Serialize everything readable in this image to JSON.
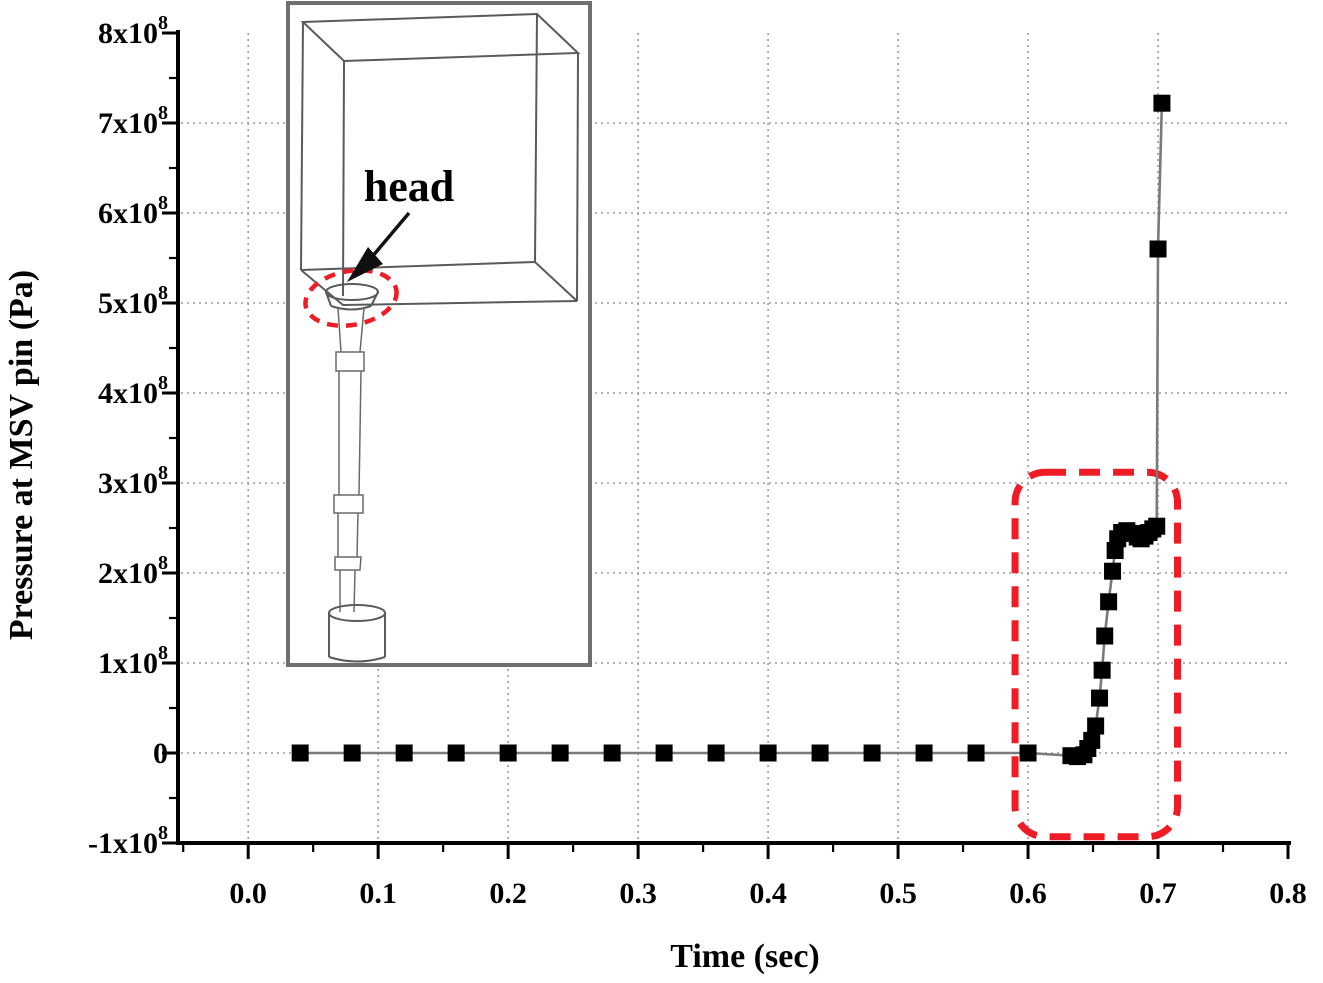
{
  "figure": {
    "background": "#ffffff",
    "accent_red": "#ee1c25",
    "axis_color": "#000000",
    "grid_color": "#9b9b9b",
    "line_color": "#7a7a7a",
    "marker_color": "#000000",
    "inset_frame_color": "#707070"
  },
  "chart_data": {
    "type": "scatter",
    "title": "",
    "xlabel": "Time (sec)",
    "ylabel": "Pressure at MSV pin (Pa)",
    "xlim": [
      -0.054,
      0.8
    ],
    "ylim": [
      -100000000,
      800000000
    ],
    "grid": true,
    "grid_style": "dotted",
    "x_minor_step": 0.05,
    "y_minor_step": 50000000,
    "x_ticks": [
      {
        "value": 0.0,
        "label": "0.0"
      },
      {
        "value": 0.1,
        "label": "0.1"
      },
      {
        "value": 0.2,
        "label": "0.2"
      },
      {
        "value": 0.3,
        "label": "0.3"
      },
      {
        "value": 0.4,
        "label": "0.4"
      },
      {
        "value": 0.5,
        "label": "0.5"
      },
      {
        "value": 0.6,
        "label": "0.6"
      },
      {
        "value": 0.7,
        "label": "0.7"
      },
      {
        "value": 0.8,
        "label": "0.8"
      }
    ],
    "y_ticks": [
      {
        "value": 800000000,
        "label": "8x10",
        "sup": "8"
      },
      {
        "value": 700000000,
        "label": "7x10",
        "sup": "8"
      },
      {
        "value": 600000000,
        "label": "6x10",
        "sup": "8"
      },
      {
        "value": 500000000,
        "label": "5x10",
        "sup": "8"
      },
      {
        "value": 400000000,
        "label": "4x10",
        "sup": "8"
      },
      {
        "value": 300000000,
        "label": "3x10",
        "sup": "8"
      },
      {
        "value": 200000000,
        "label": "2x10",
        "sup": "8"
      },
      {
        "value": 100000000,
        "label": "1x10",
        "sup": "8"
      },
      {
        "value": 0,
        "label": "0",
        "sup": ""
      },
      {
        "value": -100000000,
        "label": "-1x10",
        "sup": "8"
      }
    ],
    "series": [
      {
        "name": "Pressure at MSV pin",
        "marker": "square",
        "points": [
          [
            0.04,
            0
          ],
          [
            0.08,
            0
          ],
          [
            0.12,
            0
          ],
          [
            0.16,
            0
          ],
          [
            0.2,
            0
          ],
          [
            0.24,
            0
          ],
          [
            0.28,
            0
          ],
          [
            0.32,
            0
          ],
          [
            0.36,
            0
          ],
          [
            0.4,
            0
          ],
          [
            0.44,
            0
          ],
          [
            0.48,
            0
          ],
          [
            0.52,
            0
          ],
          [
            0.56,
            0
          ],
          [
            0.6,
            0
          ],
          [
            0.633,
            -3000000.0
          ],
          [
            0.638,
            -4000000.0
          ],
          [
            0.643,
            -2000000.0
          ],
          [
            0.646,
            5000000.0
          ],
          [
            0.649,
            14000000.0
          ],
          [
            0.652,
            30000000.0
          ],
          [
            0.655,
            61000000.0
          ],
          [
            0.657,
            92000000.0
          ],
          [
            0.659,
            130000000.0
          ],
          [
            0.662,
            168000000.0
          ],
          [
            0.665,
            202000000.0
          ],
          [
            0.667,
            225000000.0
          ],
          [
            0.669,
            238000000.0
          ],
          [
            0.672,
            245000000.0
          ],
          [
            0.676,
            247000000.0
          ],
          [
            0.68,
            244000000.0
          ],
          [
            0.684,
            240000000.0
          ],
          [
            0.687,
            238000000.0
          ],
          [
            0.69,
            241000000.0
          ],
          [
            0.693,
            245000000.0
          ],
          [
            0.696,
            249000000.0
          ],
          [
            0.699,
            252000000.0
          ],
          [
            0.7,
            560000000.0
          ],
          [
            0.703,
            722000000.0
          ]
        ]
      }
    ],
    "annotations": {
      "highlight_box": {
        "x0": 0.59,
        "x1": 0.715,
        "y0": -93000000.0,
        "y1": 312000000.0,
        "style": "red-dashed-rounded"
      },
      "inset": {
        "label": "head",
        "content": "wireframe of valve pin with head inside box"
      }
    }
  }
}
